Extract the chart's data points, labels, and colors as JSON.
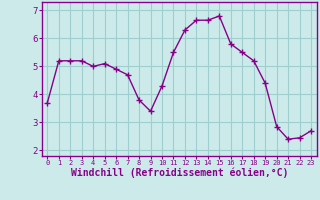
{
  "x": [
    0,
    1,
    2,
    3,
    4,
    5,
    6,
    7,
    8,
    9,
    10,
    11,
    12,
    13,
    14,
    15,
    16,
    17,
    18,
    19,
    20,
    21,
    22,
    23
  ],
  "y": [
    3.7,
    5.2,
    5.2,
    5.2,
    5.0,
    5.1,
    4.9,
    4.7,
    3.8,
    3.4,
    4.3,
    5.5,
    6.3,
    6.65,
    6.65,
    6.8,
    5.8,
    5.5,
    5.2,
    4.4,
    2.85,
    2.4,
    2.45,
    2.7
  ],
  "line_color": "#880088",
  "marker": "+",
  "markersize": 4,
  "markeredgewidth": 1.0,
  "linewidth": 1.0,
  "xlabel": "Windchill (Refroidissement éolien,°C)",
  "xlabel_fontsize": 7,
  "ylim": [
    1.8,
    7.3
  ],
  "xlim": [
    -0.5,
    23.5
  ],
  "yticks": [
    2,
    3,
    4,
    5,
    6,
    7
  ],
  "xticks": [
    0,
    1,
    2,
    3,
    4,
    5,
    6,
    7,
    8,
    9,
    10,
    11,
    12,
    13,
    14,
    15,
    16,
    17,
    18,
    19,
    20,
    21,
    22,
    23
  ],
  "xtick_fontsize": 5.0,
  "ytick_fontsize": 6.5,
  "grid_color": "#9ecece",
  "bg_color": "#cceaea",
  "spine_color": "#880088",
  "tick_color": "#880088",
  "label_color": "#880088"
}
